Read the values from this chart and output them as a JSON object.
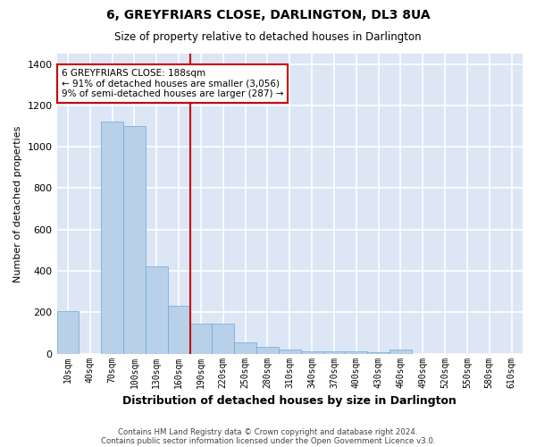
{
  "title": "6, GREYFRIARS CLOSE, DARLINGTON, DL3 8UA",
  "subtitle": "Size of property relative to detached houses in Darlington",
  "xlabel": "Distribution of detached houses by size in Darlington",
  "ylabel": "Number of detached properties",
  "footer_line1": "Contains HM Land Registry data © Crown copyright and database right 2024.",
  "footer_line2": "Contains public sector information licensed under the Open Government Licence v3.0.",
  "categories": [
    "10sqm",
    "40sqm",
    "70sqm",
    "100sqm",
    "130sqm",
    "160sqm",
    "190sqm",
    "220sqm",
    "250sqm",
    "280sqm",
    "310sqm",
    "340sqm",
    "370sqm",
    "400sqm",
    "430sqm",
    "460sqm",
    "490sqm",
    "520sqm",
    "550sqm",
    "580sqm",
    "610sqm"
  ],
  "values": [
    205,
    0,
    1120,
    1100,
    420,
    230,
    145,
    145,
    55,
    35,
    20,
    10,
    10,
    10,
    5,
    20,
    0,
    0,
    0,
    0,
    0
  ],
  "bar_color": "#b8d0e8",
  "bar_edge_color": "#6aabd2",
  "background_color": "#dce6f5",
  "grid_color": "#ffffff",
  "vline_color": "#cc0000",
  "annotation_text": "6 GREYFRIARS CLOSE: 188sqm\n← 91% of detached houses are smaller (3,056)\n9% of semi-detached houses are larger (287) →",
  "annotation_box_color": "#ffffff",
  "annotation_box_edge": "#cc0000",
  "ylim": [
    0,
    1450
  ],
  "yticks": [
    0,
    200,
    400,
    600,
    800,
    1000,
    1200,
    1400
  ],
  "fig_bg": "#ffffff",
  "vline_bin_index": 6
}
